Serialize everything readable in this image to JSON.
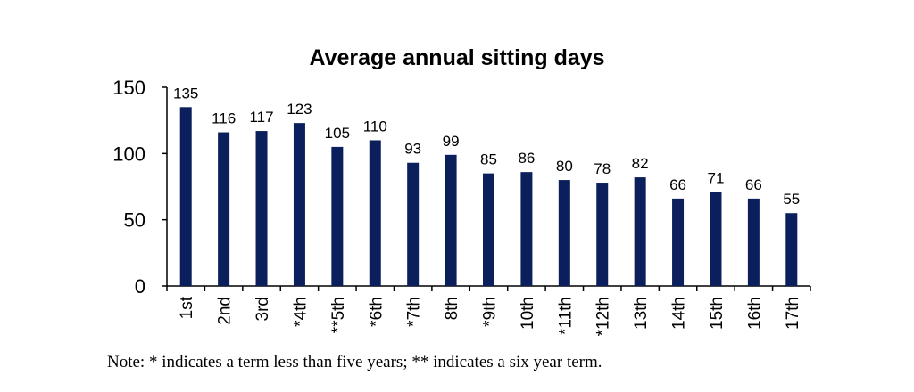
{
  "chart_data": {
    "type": "bar",
    "title": "Average annual sitting days",
    "xlabel": "",
    "ylabel": "",
    "ylim": [
      0,
      150
    ],
    "yticks": [
      "0",
      "50",
      "100",
      "150"
    ],
    "grid": false,
    "categories": [
      "1st",
      "2nd",
      "3rd",
      "*4th",
      "**5th",
      "*6th",
      "*7th",
      "8th",
      "*9th",
      "10th",
      "*11th",
      "*12th",
      "13th",
      "14th",
      "15th",
      "16th",
      "17th"
    ],
    "values": [
      135,
      116,
      117,
      123,
      105,
      110,
      93,
      99,
      85,
      86,
      80,
      78,
      82,
      66,
      71,
      66,
      55
    ],
    "bar_color": "#0a1f5c"
  },
  "note": "Note: * indicates a term less than five years; ** indicates a six year term."
}
